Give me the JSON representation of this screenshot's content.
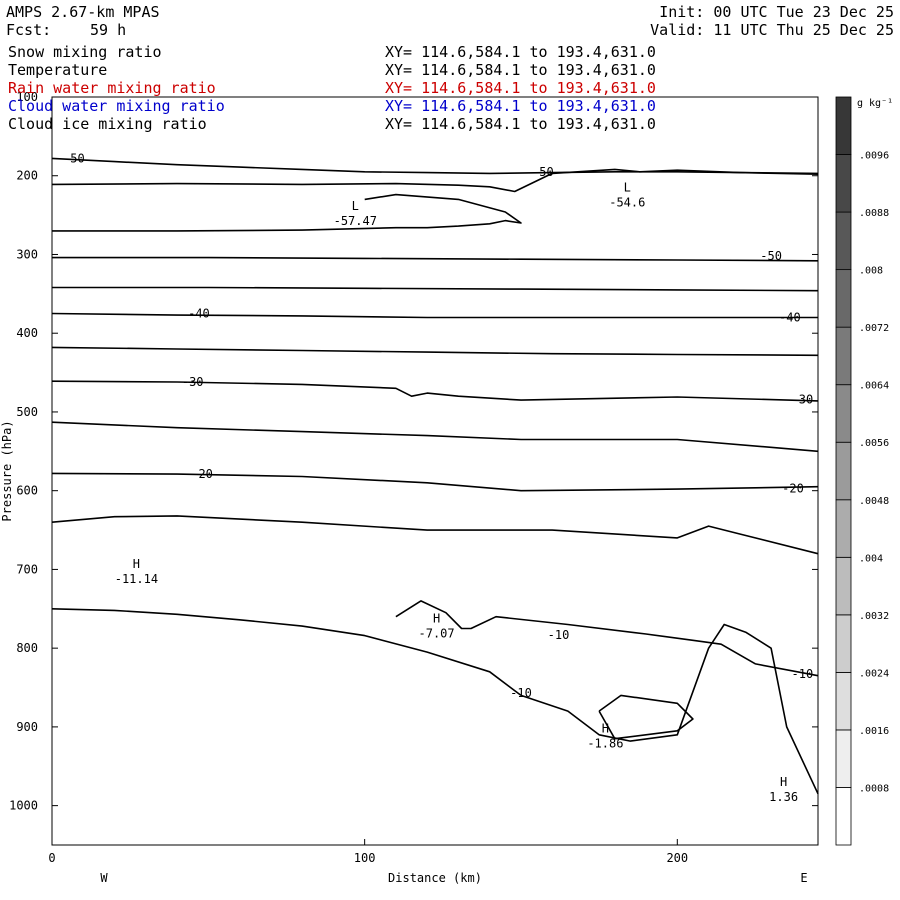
{
  "header": {
    "model": "AMPS 2.67-km MPAS",
    "fcst_label": "Fcst:",
    "fcst_value": "59 h",
    "init": "Init: 00 UTC Tue 23 Dec 25",
    "valid": "Valid: 11 UTC Thu 25 Dec 25"
  },
  "fields": [
    {
      "name": "Snow mixing ratio",
      "xy": "XY= 114.6,584.1 to 193.4,631.0",
      "color": "#000000"
    },
    {
      "name": "Temperature",
      "xy": "XY= 114.6,584.1 to 193.4,631.0",
      "color": "#000000"
    },
    {
      "name": "Rain water mixing ratio",
      "xy": "XY= 114.6,584.1 to 193.4,631.0",
      "color": "#cc0000"
    },
    {
      "name": "Cloud water mixing ratio",
      "xy": "XY= 114.6,584.1 to 193.4,631.0",
      "color": "#0000cc"
    },
    {
      "name": "Cloud ice mixing ratio",
      "xy": "XY= 114.6,584.1 to 193.4,631.0",
      "color": "#000000"
    }
  ],
  "chart_data": {
    "type": "line",
    "xlabel": "Distance (km)",
    "ylabel": "Pressure (hPa)",
    "xlim": [
      0,
      245
    ],
    "ylim": [
      100,
      1050
    ],
    "y_inverted": true,
    "x_ticks": [
      "0",
      "100",
      "200"
    ],
    "x_tick_values": [
      0,
      100,
      200
    ],
    "y_ticks": [
      "100",
      "200",
      "300",
      "400",
      "500",
      "600",
      "700",
      "800",
      "900",
      "1000"
    ],
    "y_tick_values": [
      100,
      200,
      300,
      400,
      500,
      600,
      700,
      800,
      900,
      1000
    ],
    "west_label": "W",
    "east_label": "E",
    "grid": false,
    "series": [
      {
        "x": [
          0,
          20,
          40,
          60,
          80,
          100,
          120,
          140,
          160,
          180,
          200,
          220,
          245
        ],
        "y": [
          178,
          182,
          186,
          189,
          192,
          195,
          196,
          197,
          196,
          195,
          195,
          196,
          197
        ]
      },
      {
        "x": [
          0,
          40,
          80,
          110,
          130,
          140,
          148,
          160,
          180,
          188,
          200,
          220,
          245
        ],
        "y": [
          211,
          210,
          211,
          210,
          212,
          214,
          220,
          197,
          192,
          195,
          193,
          196,
          198
        ]
      },
      {
        "x": [
          0,
          40,
          80,
          110,
          120,
          130,
          140,
          145,
          150,
          145,
          130,
          110,
          100
        ],
        "y": [
          270,
          270,
          269,
          266,
          266,
          264,
          261,
          257,
          260,
          246,
          230,
          224,
          230
        ]
      },
      {
        "x": [
          0,
          50,
          100,
          150,
          200,
          245
        ],
        "y": [
          304,
          304,
          305,
          306,
          307,
          308
        ]
      },
      {
        "x": [
          0,
          50,
          100,
          150,
          200,
          245
        ],
        "y": [
          342,
          342,
          343,
          344,
          345,
          346
        ]
      },
      {
        "x": [
          0,
          40,
          80,
          120,
          160,
          200,
          245
        ],
        "y": [
          375,
          377,
          378,
          380,
          380,
          380,
          380
        ]
      },
      {
        "x": [
          0,
          40,
          80,
          120,
          160,
          200,
          245
        ],
        "y": [
          418,
          420,
          422,
          424,
          426,
          427,
          428
        ]
      },
      {
        "x": [
          0,
          40,
          80,
          110,
          115,
          120,
          130,
          150,
          200,
          245
        ],
        "y": [
          461,
          462,
          465,
          470,
          480,
          476,
          480,
          485,
          481,
          486
        ]
      },
      {
        "x": [
          0,
          40,
          80,
          120,
          150,
          200,
          245
        ],
        "y": [
          513,
          520,
          525,
          530,
          535,
          535,
          550
        ]
      },
      {
        "x": [
          0,
          40,
          80,
          120,
          150,
          200,
          245
        ],
        "y": [
          578,
          579,
          582,
          590,
          600,
          598,
          595
        ]
      },
      {
        "x": [
          0,
          20,
          40,
          80,
          120,
          160,
          200,
          210,
          220,
          245
        ],
        "y": [
          640,
          633,
          632,
          640,
          650,
          650,
          660,
          645,
          655,
          680
        ]
      },
      {
        "x": [
          0,
          20,
          40,
          60,
          80,
          100,
          120,
          140,
          150
        ],
        "y": [
          750,
          752,
          757,
          764,
          772,
          784,
          805,
          830,
          860
        ]
      },
      {
        "x": [
          110,
          118,
          126,
          131,
          134,
          142,
          165,
          190,
          205,
          214,
          225,
          245
        ],
        "y": [
          760,
          740,
          755,
          775,
          775,
          760,
          770,
          782,
          790,
          795,
          820,
          835
        ]
      },
      {
        "x": [
          150,
          165,
          175,
          185,
          200,
          210,
          215,
          222,
          230,
          235,
          245
        ],
        "y": [
          860,
          880,
          910,
          918,
          910,
          800,
          770,
          780,
          800,
          900,
          985
        ]
      },
      {
        "x": [
          175,
          182,
          200,
          205,
          200,
          180,
          175
        ],
        "y": [
          880,
          860,
          870,
          890,
          905,
          915,
          880
        ]
      }
    ],
    "contour_labels": [
      {
        "text": "-50",
        "x": 7,
        "y": 178
      },
      {
        "text": "-50",
        "x": 157,
        "y": 195
      },
      {
        "text": "-50",
        "x": 230,
        "y": 302
      },
      {
        "text": "-40",
        "x": 47,
        "y": 375
      },
      {
        "text": "-40",
        "x": 236,
        "y": 380
      },
      {
        "text": "-30",
        "x": 45,
        "y": 462
      },
      {
        "text": "-30",
        "x": 240,
        "y": 484
      },
      {
        "text": "-20",
        "x": 48,
        "y": 579
      },
      {
        "text": "-20",
        "x": 237,
        "y": 597
      },
      {
        "text": "-10",
        "x": 162,
        "y": 783
      },
      {
        "text": "-10",
        "x": 150,
        "y": 857
      },
      {
        "text": "-10",
        "x": 240,
        "y": 833
      }
    ],
    "extrema": [
      {
        "mark": "L",
        "value": "-57.47",
        "x": 97,
        "y": 256
      },
      {
        "mark": "L",
        "value": "-54.6",
        "x": 184,
        "y": 233
      },
      {
        "mark": "H",
        "value": "-11.14",
        "x": 27,
        "y": 711
      },
      {
        "mark": "H",
        "value": "-7.07",
        "x": 123,
        "y": 780
      },
      {
        "mark": "H",
        "value": "-1.86",
        "x": 177,
        "y": 920
      },
      {
        "mark": "H",
        "value": "1.36",
        "x": 234,
        "y": 988
      }
    ],
    "colorbar": {
      "unit": "g kg⁻¹",
      "levels": [
        ".0096",
        ".0088",
        ".008",
        ".0072",
        ".0064",
        ".0056",
        ".0048",
        ".004",
        ".0032",
        ".0024",
        ".0016",
        ".0008"
      ],
      "level_values": [
        0.0096,
        0.0088,
        0.008,
        0.0072,
        0.0064,
        0.0056,
        0.0048,
        0.004,
        0.0032,
        0.0024,
        0.0016,
        0.0008
      ],
      "max": 0.0104
    }
  }
}
